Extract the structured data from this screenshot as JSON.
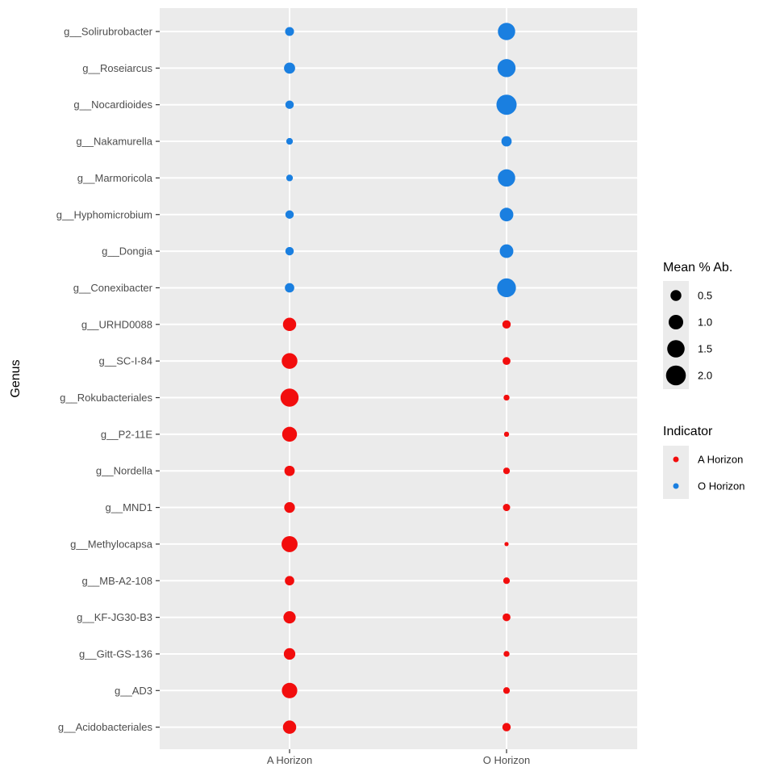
{
  "chart_data": {
    "type": "scatter",
    "title": "",
    "xlabel": "",
    "ylabel": "Genus",
    "categories_x": [
      "A Horizon",
      "O Horizon"
    ],
    "categories_y": [
      "g__Solirubrobacter",
      "g__Roseiarcus",
      "g__Nocardioides",
      "g__Nakamurella",
      "g__Marmoricola",
      "g__Hyphomicrobium",
      "g__Dongia",
      "g__Conexibacter",
      "g__URHD0088",
      "g__SC-I-84",
      "g__Rokubacteriales",
      "g__P2-11E",
      "g__Nordella",
      "g__MND1",
      "g__Methylocapsa",
      "g__MB-A2-108",
      "g__KF-JG30-B3",
      "g__Gitt-GS-136",
      "g__AD3",
      "g__Acidobacteriales"
    ],
    "points": [
      {
        "genus": "g__Solirubrobacter",
        "indicator": "O Horizon",
        "a": 0.45,
        "o": 1.7
      },
      {
        "genus": "g__Roseiarcus",
        "indicator": "O Horizon",
        "a": 0.7,
        "o": 1.85
      },
      {
        "genus": "g__Nocardioides",
        "indicator": "O Horizon",
        "a": 0.4,
        "o": 2.3
      },
      {
        "genus": "g__Nakamurella",
        "indicator": "O Horizon",
        "a": 0.25,
        "o": 0.6
      },
      {
        "genus": "g__Marmoricola",
        "indicator": "O Horizon",
        "a": 0.25,
        "o": 1.7
      },
      {
        "genus": "g__Hyphomicrobium",
        "indicator": "O Horizon",
        "a": 0.4,
        "o": 1.05
      },
      {
        "genus": "g__Dongia",
        "indicator": "O Horizon",
        "a": 0.4,
        "o": 1.05
      },
      {
        "genus": "g__Conexibacter",
        "indicator": "O Horizon",
        "a": 0.5,
        "o": 2.0
      },
      {
        "genus": "g__URHD0088",
        "indicator": "A Horizon",
        "a": 1.0,
        "o": 0.4
      },
      {
        "genus": "g__SC-I-84",
        "indicator": "A Horizon",
        "a": 1.4,
        "o": 0.35
      },
      {
        "genus": "g__Rokubacteriales",
        "indicator": "A Horizon",
        "a": 1.85,
        "o": 0.2
      },
      {
        "genus": "g__P2-11E",
        "indicator": "A Horizon",
        "a": 1.25,
        "o": 0.15
      },
      {
        "genus": "g__Nordella",
        "indicator": "A Horizon",
        "a": 0.6,
        "o": 0.25
      },
      {
        "genus": "g__MND1",
        "indicator": "A Horizon",
        "a": 0.65,
        "o": 0.3
      },
      {
        "genus": "g__Methylocapsa",
        "indicator": "A Horizon",
        "a": 1.45,
        "o": 0.1
      },
      {
        "genus": "g__MB-A2-108",
        "indicator": "A Horizon",
        "a": 0.5,
        "o": 0.25
      },
      {
        "genus": "g__KF-JG30-B3",
        "indicator": "A Horizon",
        "a": 0.85,
        "o": 0.35
      },
      {
        "genus": "g__Gitt-GS-136",
        "indicator": "A Horizon",
        "a": 0.75,
        "o": 0.2
      },
      {
        "genus": "g__AD3",
        "indicator": "A Horizon",
        "a": 1.35,
        "o": 0.25
      },
      {
        "genus": "g__Acidobacteriales",
        "indicator": "A Horizon",
        "a": 1.0,
        "o": 0.4
      }
    ],
    "size_legend": {
      "title": "Mean % Ab.",
      "values": [
        0.5,
        1.0,
        1.5,
        2.0
      ],
      "labels": [
        "0.5",
        "1.0",
        "1.5",
        "2.0"
      ]
    },
    "color_legend": {
      "title": "Indicator",
      "items": [
        {
          "label": "A Horizon",
          "color": "#f20d0d"
        },
        {
          "label": "O Horizon",
          "color": "#1a7fe0"
        }
      ]
    },
    "grid": true,
    "legend_position": "right",
    "panel_background": "#ebebeb",
    "grid_color": "#ffffff"
  }
}
